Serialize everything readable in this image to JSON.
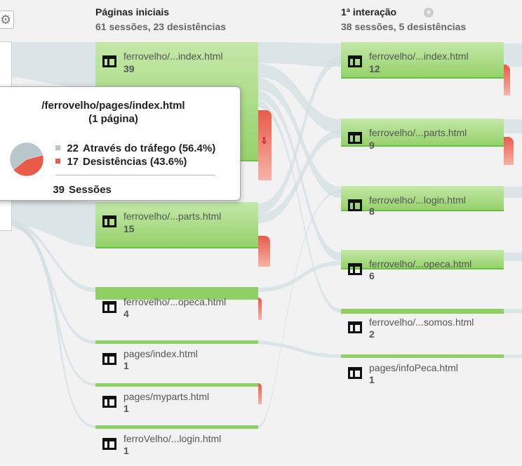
{
  "colors": {
    "background": "#f2f2f2",
    "flow": "#d3dfe2",
    "node_green": "#95d26a",
    "dropoff_red": "#e85b4b",
    "traffic_swatch": "#b8c7cc"
  },
  "columns": [
    {
      "title": "Páginas iniciais",
      "subtitle": "61 sessões, 23 desistências"
    },
    {
      "title": "1ª interação",
      "subtitle": "38 sessões, 5 desistências",
      "close_icon": "close-icon"
    }
  ],
  "start_nodes": [
    {
      "label": "ferrovelho/...index.html",
      "count": "39"
    },
    {
      "label": "ferrovelho/...parts.html",
      "count": "15"
    },
    {
      "label": "ferrovelho/...opeca.html",
      "count": "4"
    },
    {
      "label": "pages/index.html",
      "count": "1"
    },
    {
      "label": "pages/myparts.html",
      "count": "1"
    },
    {
      "label": "ferroVelho/...login.html",
      "count": "1"
    }
  ],
  "interaction_nodes": [
    {
      "label": "ferrovelho/...index.html",
      "count": "12"
    },
    {
      "label": "ferrovelho/...parts.html",
      "count": "9"
    },
    {
      "label": "ferrovelho/...login.html",
      "count": "8"
    },
    {
      "label": "ferrovelho/...opeca.html",
      "count": "6"
    },
    {
      "label": "ferrovelho/...somos.html",
      "count": "2"
    },
    {
      "label": "pages/infoPeca.html",
      "count": "1"
    }
  ],
  "tooltip": {
    "title": "/ferrovelho/pages/index.html",
    "subtitle": "(1 página)",
    "traffic_count": "22",
    "traffic_label": "Através do tráfego (56.4%)",
    "traffic_fraction": 0.564,
    "dropoff_count": "17",
    "dropoff_label": "Desistências (43.6%)",
    "dropoff_fraction": 0.436,
    "sessions_count": "39",
    "sessions_label": "Sessões"
  },
  "icons": {
    "settings": "gear-icon",
    "page": "page-icon",
    "dropoff_arrow": "down-arrow-icon"
  }
}
